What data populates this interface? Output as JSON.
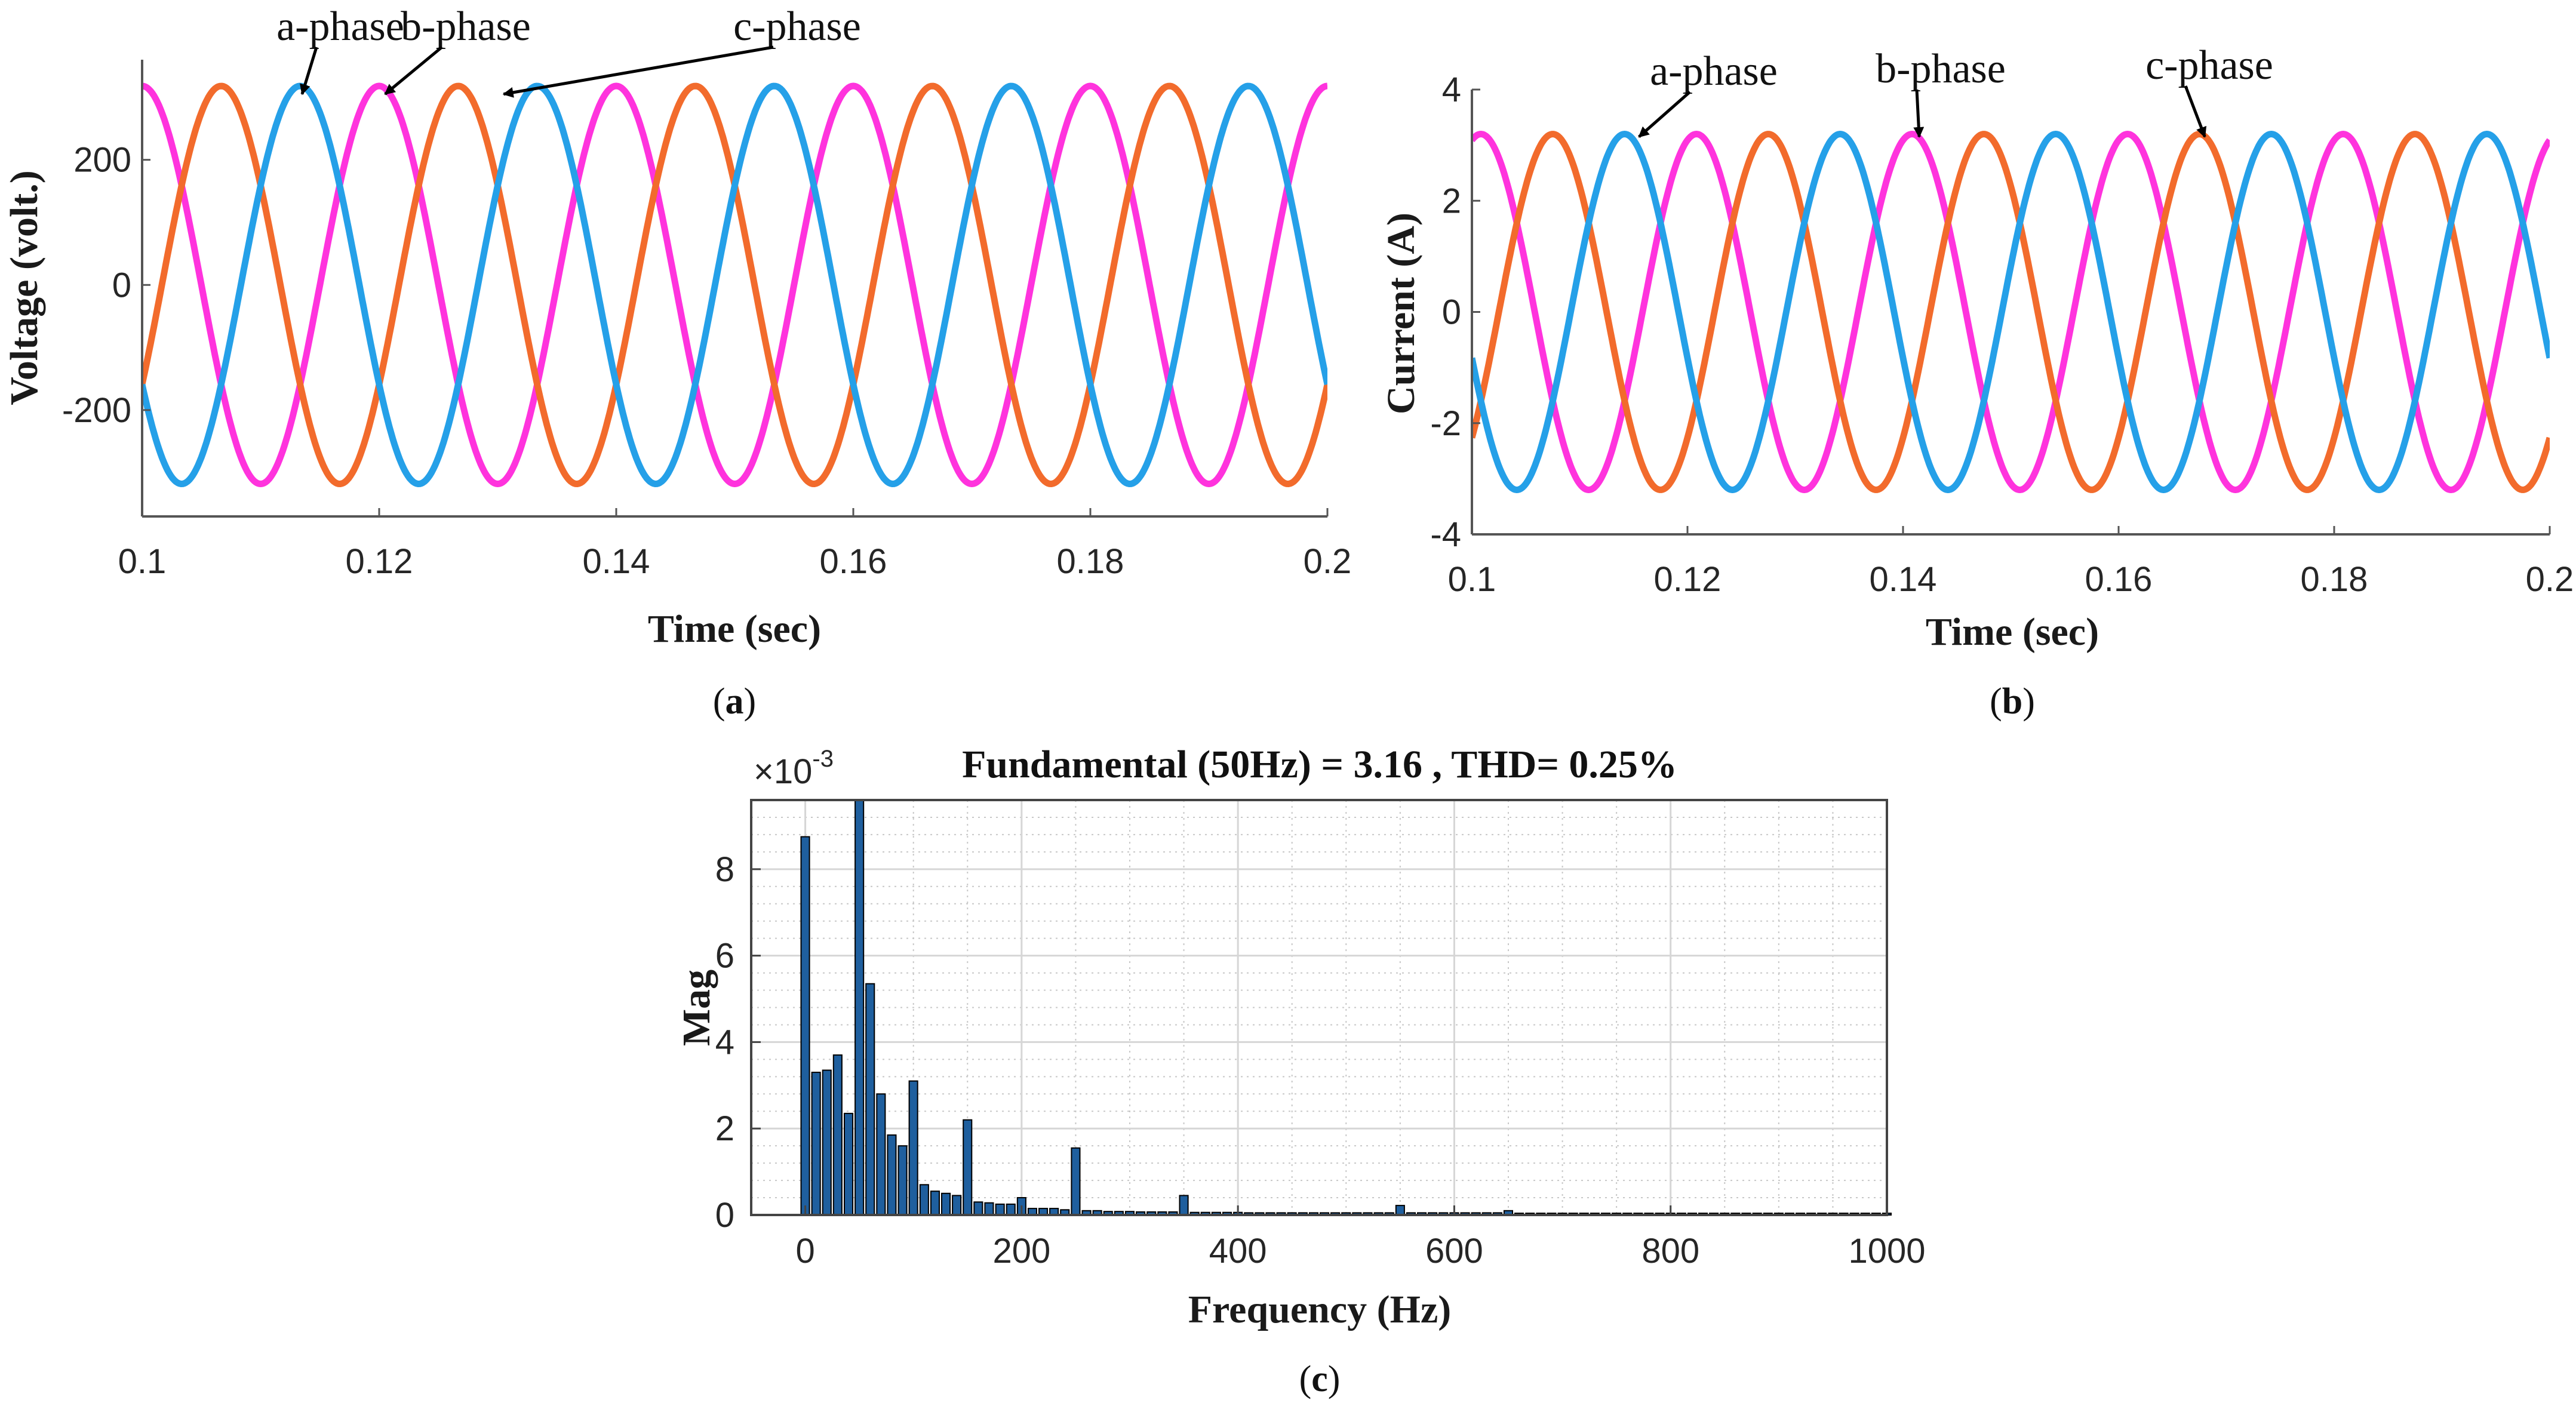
{
  "chart_data": [
    {
      "id": "voltage",
      "type": "line",
      "caption": "a",
      "title": "",
      "xlabel": "Time (sec)",
      "ylabel": "Voltage (volt.)",
      "xlim": [
        0.1,
        0.2
      ],
      "ylim": [
        -370,
        360
      ],
      "xticks": [
        0.1,
        0.12,
        0.14,
        0.16,
        0.18,
        0.2
      ],
      "xtick_labels": [
        "0.1",
        "0.12",
        "0.14",
        "0.16",
        "0.18",
        "0.2"
      ],
      "yticks": [
        -200,
        0,
        200
      ],
      "ytick_labels": [
        "-200",
        "0",
        "200"
      ],
      "frequency_hz": 50,
      "series": [
        {
          "name": "a-phase",
          "color": "#ff33dd",
          "amplitude": 318,
          "phase_deg": 90
        },
        {
          "name": "b-phase",
          "color": "#f26b2c",
          "amplitude": 318,
          "phase_deg": -30
        },
        {
          "name": "c-phase",
          "color": "#25a0e8",
          "amplitude": 318,
          "phase_deg": 210
        }
      ],
      "annotations": [
        {
          "label": "a-phase",
          "target": [
            0.1135,
            305
          ]
        },
        {
          "label": "b-phase",
          "target": [
            0.1205,
            305
          ]
        },
        {
          "label": "c-phase",
          "target": [
            0.1305,
            305
          ]
        }
      ]
    },
    {
      "id": "current",
      "type": "line",
      "caption": "b",
      "title": "",
      "xlabel": "Time (sec)",
      "ylabel": "Current (A)",
      "xlim": [
        0.1,
        0.2
      ],
      "ylim": [
        -4,
        4
      ],
      "xticks": [
        0.1,
        0.12,
        0.14,
        0.16,
        0.18,
        0.2
      ],
      "xtick_labels": [
        "0.1",
        "0.12",
        "0.14",
        "0.16",
        "0.18",
        "0.2"
      ],
      "yticks": [
        -4,
        -2,
        0,
        2,
        4
      ],
      "ytick_labels": [
        "-4",
        "-2",
        "0",
        "2",
        "4"
      ],
      "frequency_hz": 50,
      "series": [
        {
          "name": "a-phase",
          "color": "#ff33dd",
          "amplitude": 3.2,
          "phase_deg": 75
        },
        {
          "name": "b-phase",
          "color": "#f26b2c",
          "amplitude": 3.2,
          "phase_deg": -45
        },
        {
          "name": "c-phase",
          "color": "#25a0e8",
          "amplitude": 3.2,
          "phase_deg": 195
        }
      ],
      "annotations": [
        {
          "label": "a-phase",
          "target": [
            0.1155,
            3.15
          ]
        },
        {
          "label": "b-phase",
          "target": [
            0.1415,
            3.15
          ]
        },
        {
          "label": "c-phase",
          "target": [
            0.168,
            3.15
          ]
        }
      ]
    },
    {
      "id": "fft",
      "type": "bar",
      "caption": "c",
      "title": "Fundamental (50Hz) = 3.16 , THD= 0.25%",
      "xlabel": "Frequency (Hz)",
      "ylabel": "Mag",
      "y_multiplier": "×10",
      "y_exponent": "-3",
      "xlim": [
        -50,
        1000
      ],
      "ylim": [
        0,
        9.6
      ],
      "xticks": [
        0,
        200,
        400,
        600,
        800,
        1000
      ],
      "xtick_labels": [
        "0",
        "200",
        "400",
        "600",
        "800",
        "1000"
      ],
      "yticks": [
        0,
        2,
        4,
        6,
        8
      ],
      "ytick_labels": [
        "0",
        "2",
        "4",
        "6",
        "8"
      ],
      "bar_color": "#1f5f9e",
      "bars": {
        "x": [
          0,
          10,
          20,
          30,
          40,
          50,
          60,
          70,
          80,
          90,
          100,
          110,
          120,
          130,
          140,
          150,
          160,
          170,
          180,
          190,
          200,
          210,
          220,
          230,
          240,
          250,
          260,
          270,
          280,
          290,
          300,
          310,
          320,
          330,
          340,
          350,
          360,
          370,
          380,
          390,
          400,
          410,
          420,
          430,
          440,
          450,
          460,
          470,
          480,
          490,
          500,
          510,
          520,
          530,
          540,
          550,
          560,
          570,
          580,
          590,
          600,
          610,
          620,
          630,
          640,
          650,
          660,
          670,
          680,
          690,
          700,
          710,
          720,
          730,
          740,
          750,
          760,
          770,
          780,
          790,
          800,
          810,
          820,
          830,
          840,
          850,
          860,
          870,
          880,
          890,
          900,
          910,
          920,
          930,
          940,
          950,
          960,
          970,
          980,
          990,
          1000
        ],
        "values": [
          8.75,
          3.3,
          3.35,
          3.7,
          2.35,
          9.6,
          5.35,
          2.8,
          1.85,
          1.6,
          3.1,
          0.7,
          0.55,
          0.5,
          0.45,
          2.2,
          0.3,
          0.28,
          0.25,
          0.25,
          0.4,
          0.15,
          0.15,
          0.15,
          0.12,
          1.55,
          0.1,
          0.1,
          0.08,
          0.08,
          0.08,
          0.07,
          0.07,
          0.07,
          0.07,
          0.45,
          0.06,
          0.06,
          0.06,
          0.06,
          0.06,
          0.05,
          0.05,
          0.05,
          0.05,
          0.05,
          0.05,
          0.05,
          0.05,
          0.05,
          0.05,
          0.05,
          0.05,
          0.05,
          0.05,
          0.22,
          0.05,
          0.05,
          0.05,
          0.05,
          0.05,
          0.05,
          0.05,
          0.05,
          0.05,
          0.1,
          0.04,
          0.04,
          0.04,
          0.04,
          0.04,
          0.04,
          0.04,
          0.04,
          0.04,
          0.04,
          0.04,
          0.04,
          0.04,
          0.04,
          0.04,
          0.04,
          0.04,
          0.04,
          0.04,
          0.04,
          0.04,
          0.04,
          0.04,
          0.04,
          0.04,
          0.04,
          0.04,
          0.04,
          0.04,
          0.04,
          0.04,
          0.04,
          0.04,
          0.04,
          0.04
        ]
      }
    }
  ]
}
